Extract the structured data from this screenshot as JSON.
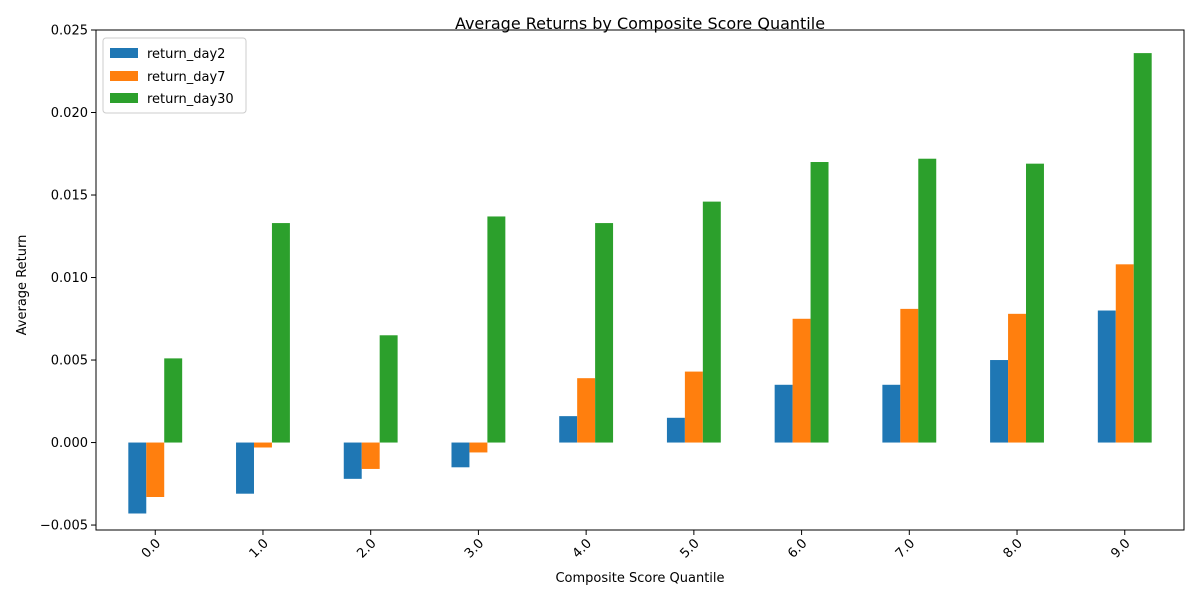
{
  "chart_data": {
    "type": "bar",
    "title": "Average Returns by Composite Score Quantile",
    "xlabel": "Composite Score Quantile",
    "ylabel": "Average Return",
    "categories": [
      "0.0",
      "1.0",
      "2.0",
      "3.0",
      "4.0",
      "5.0",
      "6.0",
      "7.0",
      "8.0",
      "9.0"
    ],
    "series": [
      {
        "name": "return_day2",
        "color": "#1f77b4",
        "values": [
          -0.0043,
          -0.0031,
          -0.0022,
          -0.0015,
          0.0016,
          0.0015,
          0.0035,
          0.0035,
          0.005,
          0.008
        ]
      },
      {
        "name": "return_day7",
        "color": "#ff7f0e",
        "values": [
          -0.0033,
          -0.0003,
          -0.0016,
          -0.0006,
          0.0039,
          0.0043,
          0.0075,
          0.0081,
          0.0078,
          0.0108
        ]
      },
      {
        "name": "return_day30",
        "color": "#2ca02c",
        "values": [
          0.0051,
          0.0133,
          0.0065,
          0.0137,
          0.0133,
          0.0146,
          0.017,
          0.0172,
          0.0169,
          0.0236
        ]
      }
    ],
    "ylim": [
      -0.0053,
      0.025
    ],
    "yticks": [
      "−0.005",
      "0.000",
      "0.005",
      "0.010",
      "0.015",
      "0.020",
      "0.025"
    ],
    "ytick_values": [
      -0.005,
      0,
      0.005,
      0.01,
      0.015,
      0.02,
      0.025
    ],
    "legend_placement": "top-left",
    "grid": false
  }
}
